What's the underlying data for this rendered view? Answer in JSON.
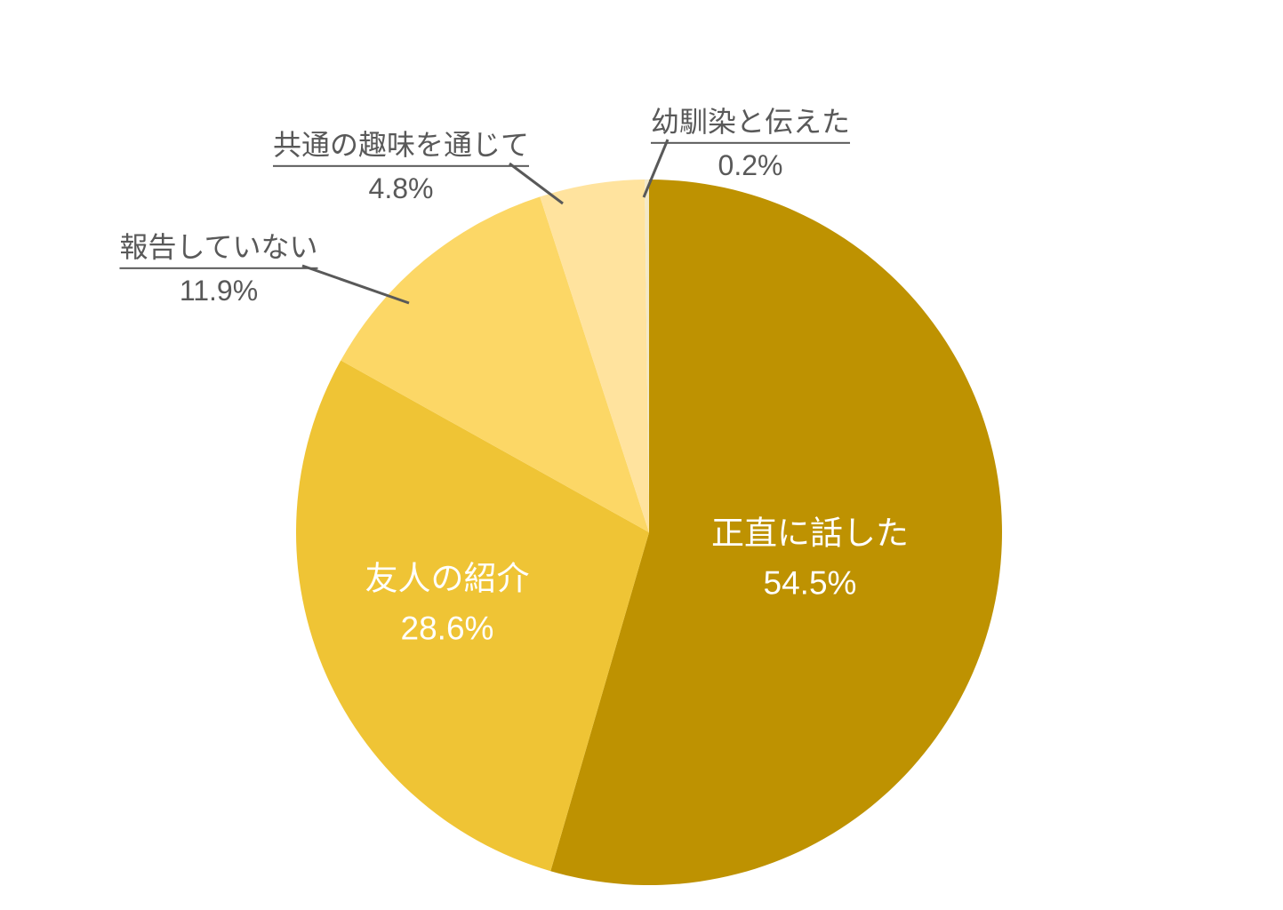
{
  "colors": {
    "background": "#FFFFFF",
    "text": "#595959",
    "inside_label": "#FFFFFF",
    "leader_line": "#595959"
  },
  "chart_data": {
    "type": "pie",
    "unit": "%",
    "direction": "clockwise",
    "start_angle_deg": 0,
    "grid": false,
    "legend": "none",
    "slices": [
      {
        "label": "正直に話した",
        "value": 54.5,
        "percent_label": "54.5%",
        "color": "#BE9201",
        "label_placement": "inside"
      },
      {
        "label": "友人の紹介",
        "value": 28.6,
        "percent_label": "28.6%",
        "color": "#EFC435",
        "label_placement": "inside"
      },
      {
        "label": "報告していない",
        "value": 11.9,
        "percent_label": "11.9%",
        "color": "#FCD766",
        "label_placement": "outside-leader"
      },
      {
        "label": "共通の趣味を通じて",
        "value": 4.8,
        "percent_label": "4.8%",
        "color": "#FFE39E",
        "label_placement": "outside-leader"
      },
      {
        "label": "幼馴染と伝えた",
        "value": 0.2,
        "percent_label": "0.2%",
        "color": "#F3E9C9",
        "label_placement": "outside-leader"
      }
    ]
  }
}
